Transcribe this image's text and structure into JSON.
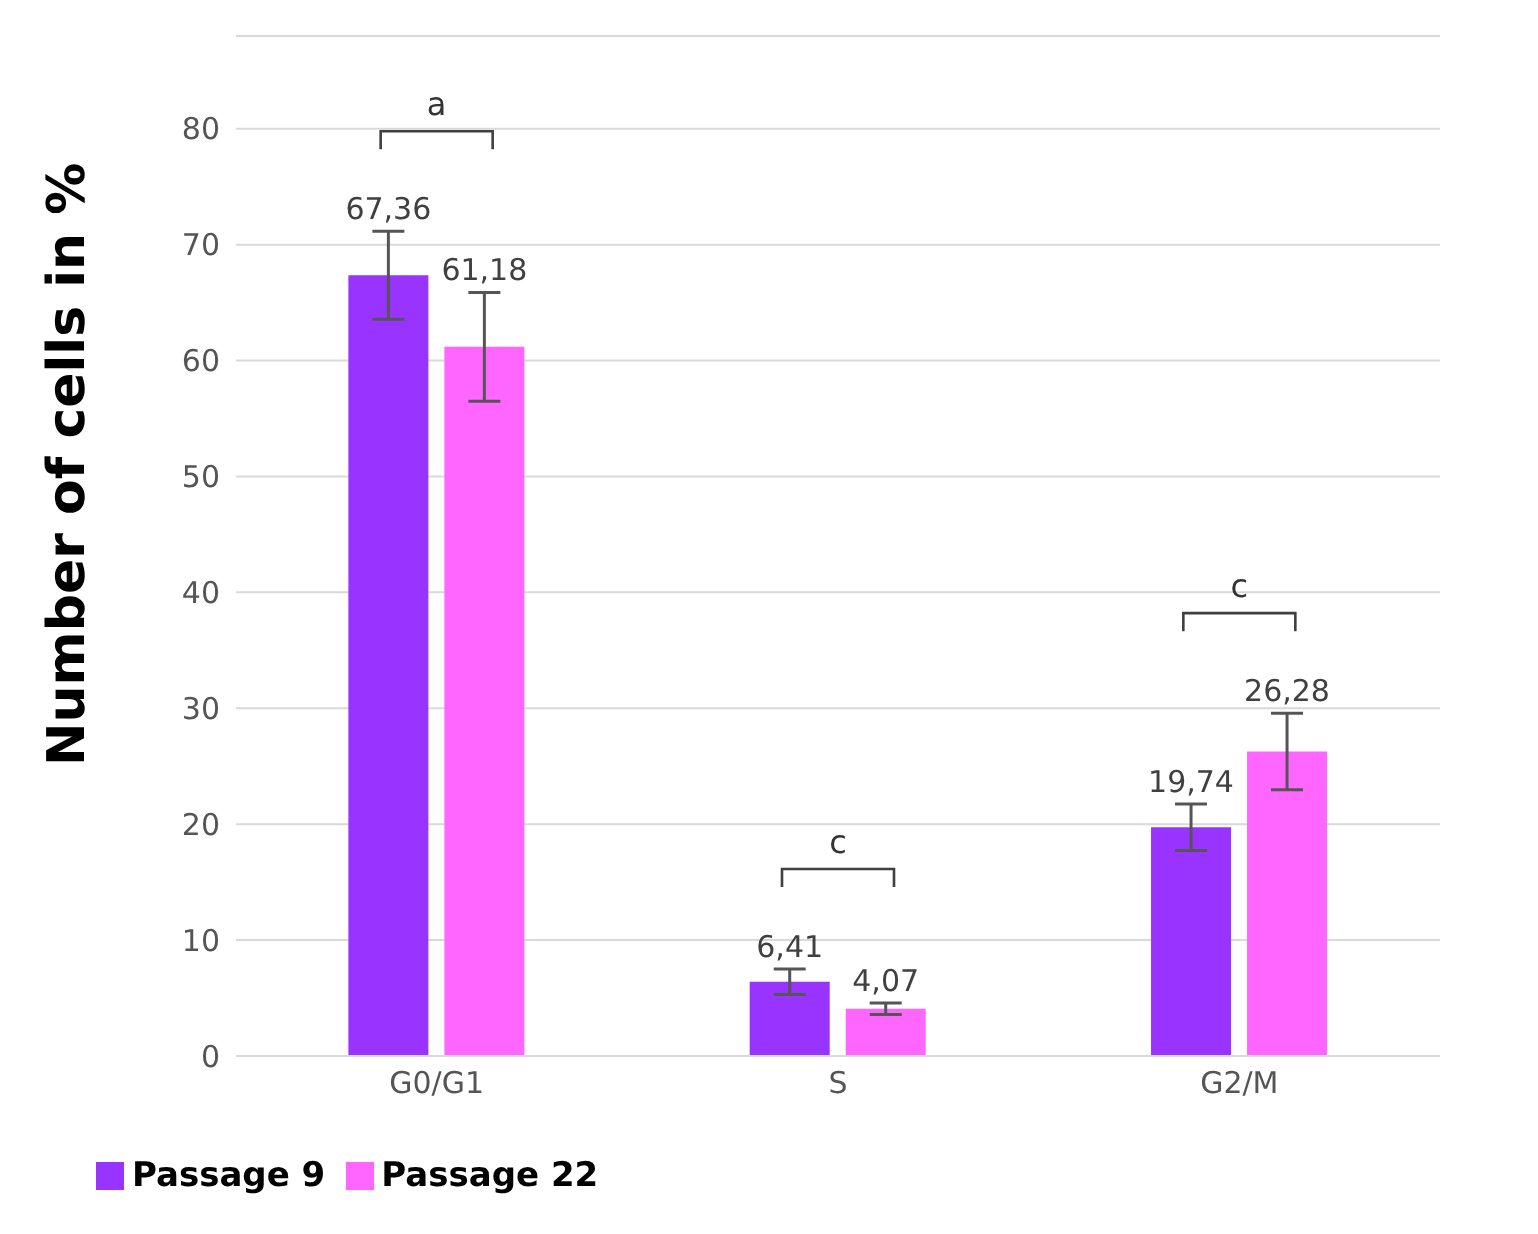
{
  "chart_data": {
    "type": "bar",
    "ylabel": "Number of cells in %",
    "categories": [
      "G0/G1",
      "S",
      "G2/M"
    ],
    "series": [
      {
        "name": "Passage 9",
        "color": "#9933ff",
        "values": [
          67.36,
          6.41,
          19.74
        ],
        "errors": [
          3.8,
          1.1,
          2
        ],
        "value_labels": [
          "67,36",
          "6,41",
          "19,74"
        ]
      },
      {
        "name": "Passage 22",
        "color": "#ff66ff",
        "values": [
          61.18,
          4.07,
          26.28
        ],
        "errors": [
          4.7,
          0.5,
          3.3
        ],
        "value_labels": [
          "61,18",
          "4,07",
          "26,28"
        ]
      }
    ],
    "ylim": [
      0,
      88
    ],
    "yticks": [
      0,
      10,
      20,
      30,
      40,
      50,
      60,
      70,
      80
    ],
    "grid": "y",
    "legend": "bottom left",
    "annotations": [
      "a",
      "c",
      "c"
    ]
  }
}
